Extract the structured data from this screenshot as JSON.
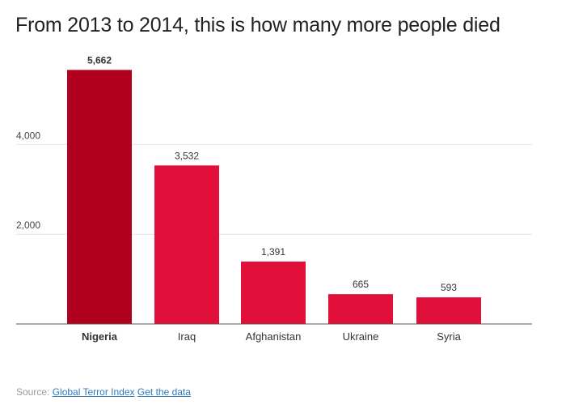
{
  "chart_data": {
    "type": "bar",
    "title": "From 2013 to 2014, this is how many more people died",
    "categories": [
      "Nigeria",
      "Iraq",
      "Afghanistan",
      "Ukraine",
      "Syria"
    ],
    "values": [
      5662,
      3532,
      1391,
      665,
      593
    ],
    "value_labels": [
      "5,662",
      "3,532",
      "1,391",
      "665",
      "593"
    ],
    "y_ticks": [
      2000,
      4000
    ],
    "y_tick_labels": [
      "2,000",
      "4,000"
    ],
    "ylim": [
      0,
      6000
    ],
    "grid": true,
    "highlight_category": "Nigeria",
    "colors": {
      "bar": "#e0103a",
      "highlight": "#b0001e",
      "grid": "#e2e2e2",
      "axis": "#555555"
    }
  },
  "footer": {
    "source_label": "Source:",
    "source_link": "Global Terror Index",
    "data_link": "Get the data"
  }
}
